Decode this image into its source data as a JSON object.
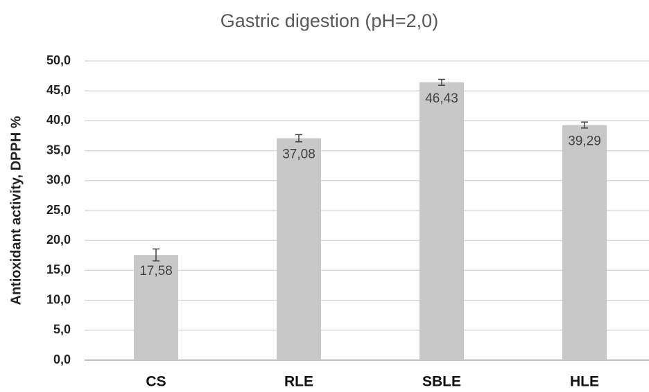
{
  "chart_data": {
    "type": "bar",
    "title": "Gastric digestion (pH=2,0)",
    "y_label": "Antioxidant activity, DPPH %",
    "categories": [
      "CS",
      "RLE",
      "SBLE",
      "HLE"
    ],
    "values": [
      17.58,
      37.08,
      46.43,
      39.29
    ],
    "value_labels": [
      "17,58",
      "37,08",
      "46,43",
      "39,29"
    ],
    "errors": [
      1.0,
      0.6,
      0.5,
      0.5
    ],
    "color": "#c8c8c8",
    "ylim": [
      0,
      50
    ],
    "yticks": [
      {
        "value": 0,
        "label": "0,0"
      },
      {
        "value": 5,
        "label": "5,0"
      },
      {
        "value": 10,
        "label": "10,0"
      },
      {
        "value": 15,
        "label": "15,0"
      },
      {
        "value": 20,
        "label": "20,0"
      },
      {
        "value": 25,
        "label": "25,0"
      },
      {
        "value": 30,
        "label": "30,0"
      },
      {
        "value": 35,
        "label": "35,0"
      },
      {
        "value": 40,
        "label": "40,0"
      },
      {
        "value": 45,
        "label": "45,0"
      },
      {
        "value": 50,
        "label": "50,0"
      }
    ],
    "grid": true
  }
}
